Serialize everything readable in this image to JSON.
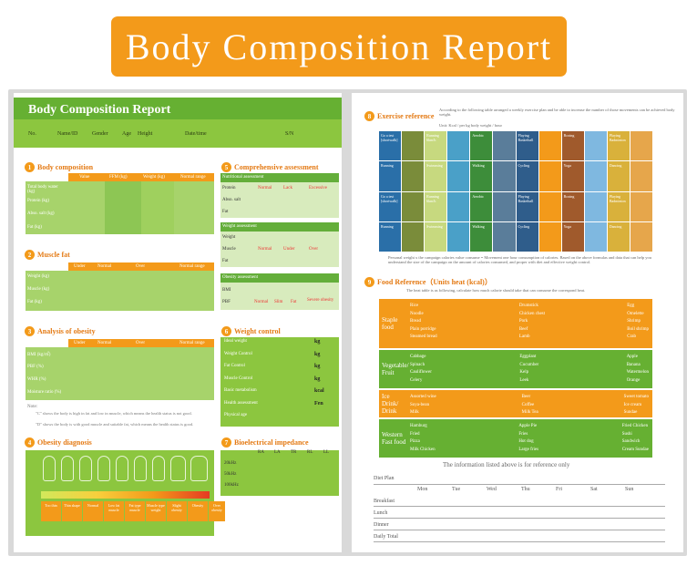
{
  "banner": {
    "title": "Body Composition Report"
  },
  "left": {
    "title": "Body Composition Report",
    "header_fields": [
      "No.",
      "Name/ID",
      "Gender",
      "Age",
      "Height",
      "Date/time",
      "S/N"
    ],
    "body_composition": {
      "title": "Body composition",
      "cols": [
        "Value",
        "FFM (kg)",
        "Weight (kg)",
        "Normal range"
      ],
      "rows": [
        "Total body water (kg)",
        "Protein (kg)",
        "Abso. salt (kg)",
        "Fat (kg)"
      ]
    },
    "muscle_fat": {
      "title": "Muscle fat",
      "cols": [
        "Under",
        "Normal",
        "Over",
        "Normal range"
      ],
      "rows": [
        "Weight (kg)",
        "Muscle (kg)",
        "Fat (kg)"
      ]
    },
    "obesity": {
      "title": "Analysis of obesity",
      "cols": [
        "Under",
        "Normal",
        "Over",
        "Normal range"
      ],
      "rows": [
        "BMI (kg/㎡)",
        "PBF (%)",
        "WHR (%)",
        "Moisture ratio (%)"
      ],
      "note_title": "Note:",
      "notes": [
        "\"C\" shows the body is high in fat and low in muscle, which means the health status is not good.",
        "\"D\" shows the body is with good muscle and suitable fat, which means the health status is good."
      ]
    },
    "comprehensive": {
      "title": "Comprehensive assessment",
      "nutrition": "Nutritional assessment",
      "nutrition_rows": [
        "Protein",
        "Abso. salt",
        "Fat"
      ],
      "weight": "Weight assessment",
      "weight_rows": [
        "Weight",
        "Muscle",
        "Fat"
      ],
      "obesity": "Obesity assessment",
      "obesity_rows": [
        "BMI",
        "PBF"
      ],
      "opts": [
        "Normal",
        "Lack",
        "Excessive"
      ],
      "opts2": [
        "Normal",
        "Under",
        "Over"
      ],
      "opts3": [
        "Normal",
        "Slim",
        "Fat",
        "Severe obesity"
      ]
    },
    "weight_control": {
      "title": "Weight control",
      "rows": [
        [
          "Ideal weight",
          "kg"
        ],
        [
          "Weight Control",
          "kg"
        ],
        [
          "Fat Control",
          "kg"
        ],
        [
          "Muscle Control",
          "kg"
        ],
        [
          "Basic metabolism",
          "kcal"
        ],
        [
          "Health assessment",
          "Fen"
        ],
        [
          "Physical age",
          ""
        ]
      ]
    },
    "obesity_diag": {
      "title": "Obesity diagnosis",
      "labels": [
        "Too thin",
        "Thin shape",
        "Normal",
        "Low fat muscle",
        "Fat type muscle",
        "Muscle type weight",
        "Slight obesity",
        "Obesity",
        "Over obesity"
      ]
    },
    "bioimpedance": {
      "title": "Bioelectrical impedance",
      "cols": [
        "RA",
        "LA",
        "TR",
        "RL",
        "LL"
      ],
      "rows": [
        "20kHz",
        "50kHz",
        "100kHz"
      ]
    }
  },
  "right": {
    "exercise": {
      "title": "Exercise reference",
      "desc": "According to the following table arranged a weekly exercise plan and be able to increase the number of those movements can be achieved body weight.",
      "unit": "Unit: Kcal / per kg body weight / hour",
      "note": "Personal weight x the campaign calories value consume = Movement one hour consumption of calories. Based on the above formulas and data that can help you understand the size of the campaign on the amount of calories consumed, and proper with diet and effective weight control.",
      "tiles": [
        "Go a test [shortwalk]",
        "Running 6km/h",
        "Aerobic",
        "Playing Basketball",
        "Boxing",
        "Playing Badminton",
        "Running",
        "Swimming",
        "Walking",
        "Cycling",
        "Yoga",
        "Dancing"
      ]
    },
    "food": {
      "title": "Food Reference（Units heat (kcal)）",
      "desc": "The heat table is as following, calculate how much calorie should take that can consume the correspond heat.",
      "groups": [
        {
          "name": "Staple food",
          "c1": [
            "Rice",
            "Noodle",
            "Bread",
            "Plain porridge",
            "Steamed bread"
          ],
          "c2": [
            "Drumstick",
            "Chicken chest",
            "Pork",
            "Beef",
            "Lamb"
          ],
          "c3": [
            "Egg",
            "Omelette",
            "Shrimp",
            "Boil shrimp",
            "Crab"
          ]
        },
        {
          "name": "Vegetable/ Fruit",
          "c1": [
            "Cabbage",
            "Spinach",
            "Cauliflower",
            "Celery"
          ],
          "c2": [
            "Eggplant",
            "Cucumber",
            "Kelp",
            "Leek"
          ],
          "c3": [
            "Apple",
            "Banana",
            "Watermelon",
            "Orange"
          ]
        },
        {
          "name": "Ice Drink/ Drink",
          "c1": [
            "Assorted wine",
            "Soya-bean",
            "Milk"
          ],
          "c2": [
            "Beer",
            "Coffee",
            "Milk Tea"
          ],
          "c3": [
            "Sweet tomato",
            "Ice cream",
            "Sundae"
          ]
        },
        {
          "name": "Western Fast food",
          "c1": [
            "Hamburg",
            "Fried",
            "Pizza",
            "Milk Chicken"
          ],
          "c2": [
            "Apple Pie",
            "Fries",
            "Hot dog",
            "Large fries"
          ],
          "c3": [
            "Fried Chicken",
            "Sushi",
            "Sandwich",
            "Cream Sundae"
          ]
        }
      ],
      "footnote": "The information listed above is for reference only"
    },
    "diet": {
      "title": "Diet Plan",
      "days": [
        "Mon",
        "Tue",
        "Wed",
        "Thu",
        "Fri",
        "Sat",
        "Sun"
      ],
      "rows": [
        "Breakfast",
        "Lunch",
        "Dinner",
        "Daily Total"
      ]
    }
  }
}
